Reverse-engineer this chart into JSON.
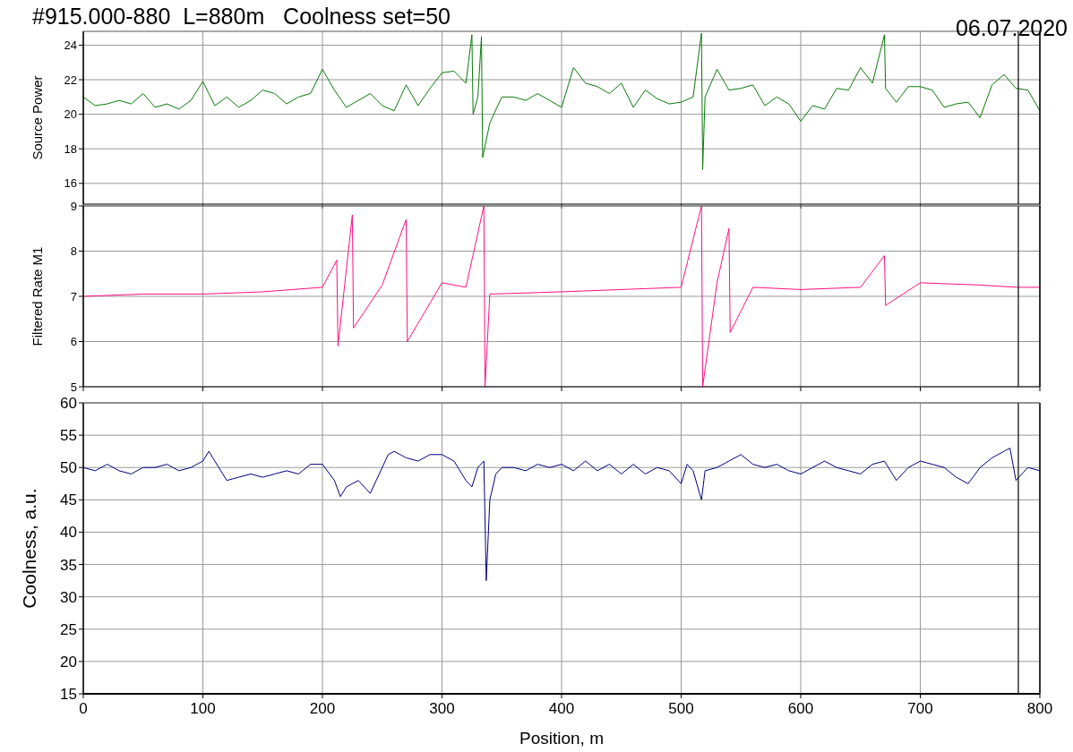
{
  "chart_data": [
    {
      "type": "line",
      "title": "#915.000-880  L=880m   Coolness set=50",
      "annotations": [
        "06.07.2020"
      ],
      "ylabel": "Source Power",
      "xlim": [
        0,
        800
      ],
      "xticks": [
        0,
        100,
        200,
        300,
        400,
        500,
        600,
        700,
        800
      ],
      "ylim": [
        14.8,
        24.8
      ],
      "yticks": [
        16,
        18,
        20,
        22,
        24
      ],
      "grid": true,
      "tick_labels": "y",
      "marker": "none",
      "line_style": "solid",
      "ref_lines": [
        {
          "axis": "x",
          "value": 782,
          "color": "#000000"
        }
      ],
      "series": [
        {
          "color": "#0a7a0a",
          "x": [
            0,
            10,
            20,
            30,
            40,
            50,
            60,
            70,
            80,
            90,
            100,
            110,
            120,
            130,
            140,
            150,
            160,
            170,
            180,
            190,
            200,
            210,
            220,
            230,
            240,
            250,
            260,
            270,
            280,
            290,
            300,
            310,
            320,
            325,
            326,
            330,
            333,
            334,
            340,
            350,
            360,
            370,
            380,
            390,
            400,
            410,
            420,
            430,
            440,
            450,
            460,
            470,
            480,
            490,
            500,
            510,
            517,
            518,
            520,
            530,
            540,
            550,
            560,
            570,
            580,
            590,
            600,
            610,
            620,
            630,
            640,
            650,
            660,
            670,
            671,
            680,
            690,
            700,
            710,
            720,
            730,
            740,
            750,
            760,
            770,
            780,
            790,
            800
          ],
          "values": [
            21,
            20.5,
            20.6,
            20.8,
            20.6,
            21.2,
            20.4,
            20.6,
            20.3,
            20.8,
            21.9,
            20.5,
            21,
            20.4,
            20.8,
            21.4,
            21.2,
            20.6,
            21,
            21.2,
            22.6,
            21.4,
            20.4,
            20.8,
            21.2,
            20.5,
            20.2,
            21.7,
            20.5,
            21.5,
            22.4,
            22.5,
            21.8,
            24.6,
            20,
            21,
            24.5,
            17.5,
            19.5,
            21,
            21,
            20.8,
            21.2,
            20.8,
            20.4,
            22.7,
            21.8,
            21.6,
            21.2,
            21.8,
            20.4,
            21.4,
            20.9,
            20.6,
            20.7,
            21,
            24.7,
            16.8,
            21,
            22.6,
            21.4,
            21.5,
            21.7,
            20.5,
            21,
            20.6,
            19.6,
            20.5,
            20.3,
            21.5,
            21.4,
            22.7,
            21.8,
            24.6,
            21.5,
            20.7,
            21.6,
            21.6,
            21.4,
            20.4,
            20.6,
            20.7,
            19.8,
            21.7,
            22.3,
            21.5,
            21.4,
            20.2
          ]
        }
      ]
    },
    {
      "type": "line",
      "ylabel": "Filtered Rate M1",
      "xlim": [
        0,
        800
      ],
      "xticks": [
        0,
        100,
        200,
        300,
        400,
        500,
        600,
        700,
        800
      ],
      "ylim": [
        5,
        9
      ],
      "yticks": [
        5,
        6,
        7,
        8,
        9
      ],
      "grid": true,
      "tick_labels": "y",
      "marker": "none",
      "line_style": "solid",
      "ref_lines": [
        {
          "axis": "x",
          "value": 782,
          "color": "#000000"
        }
      ],
      "series": [
        {
          "color": "#ff1080",
          "x": [
            0,
            50,
            100,
            150,
            200,
            212,
            213,
            225,
            226,
            250,
            270,
            271,
            300,
            320,
            335,
            336,
            340,
            400,
            450,
            500,
            517,
            518,
            530,
            540,
            541,
            560,
            600,
            650,
            670,
            671,
            700,
            750,
            780,
            800
          ],
          "values": [
            7.0,
            7.05,
            7.05,
            7.1,
            7.2,
            7.8,
            5.9,
            8.8,
            6.3,
            7.25,
            8.7,
            6.0,
            7.3,
            7.2,
            9.0,
            5.0,
            7.05,
            7.1,
            7.15,
            7.2,
            9.0,
            5.0,
            7.3,
            8.5,
            6.2,
            7.2,
            7.15,
            7.2,
            7.9,
            6.8,
            7.3,
            7.25,
            7.2,
            7.2
          ]
        }
      ]
    },
    {
      "type": "line",
      "xlabel": "Position, m",
      "ylabel": "Coolness, a.u.",
      "xlim": [
        0,
        800
      ],
      "xticks": [
        0,
        100,
        200,
        300,
        400,
        500,
        600,
        700,
        800
      ],
      "ylim": [
        15,
        60
      ],
      "yticks": [
        15,
        20,
        25,
        30,
        35,
        40,
        45,
        50,
        55,
        60
      ],
      "grid": true,
      "marker": "none",
      "line_style": "solid",
      "ref_lines": [
        {
          "axis": "x",
          "value": 782,
          "color": "#000000"
        }
      ],
      "series": [
        {
          "color": "#00007f",
          "x": [
            0,
            10,
            20,
            30,
            40,
            50,
            60,
            70,
            80,
            90,
            100,
            105,
            110,
            120,
            130,
            140,
            150,
            160,
            170,
            180,
            190,
            200,
            210,
            215,
            220,
            230,
            240,
            245,
            255,
            260,
            270,
            280,
            290,
            300,
            310,
            320,
            325,
            330,
            335,
            337,
            340,
            345,
            350,
            360,
            370,
            380,
            390,
            400,
            410,
            420,
            430,
            440,
            450,
            460,
            470,
            480,
            490,
            500,
            505,
            510,
            517,
            520,
            530,
            540,
            550,
            560,
            570,
            580,
            590,
            600,
            610,
            620,
            630,
            640,
            650,
            660,
            670,
            680,
            690,
            700,
            710,
            720,
            730,
            740,
            750,
            760,
            770,
            775,
            780,
            790,
            800
          ],
          "values": [
            50,
            49.5,
            50.5,
            49.5,
            49,
            50,
            50,
            50.5,
            49.5,
            50,
            51,
            52.5,
            51,
            48,
            48.5,
            49,
            48.5,
            49,
            49.5,
            49,
            50.5,
            50.5,
            48,
            45.5,
            47,
            48,
            46,
            48,
            52,
            52.5,
            51.5,
            51,
            52,
            52,
            51,
            48,
            47,
            50,
            51,
            32.5,
            45,
            49,
            50,
            50,
            49.5,
            50.5,
            50,
            50.5,
            49.5,
            51,
            49.5,
            50.5,
            49,
            50.5,
            49,
            50,
            49.5,
            47.5,
            50.5,
            49.5,
            45,
            49.5,
            50,
            51,
            52,
            50.5,
            50,
            50.5,
            49.5,
            49,
            50,
            51,
            50,
            49.5,
            49,
            50.5,
            51,
            48,
            50,
            51,
            50.5,
            50,
            48.5,
            47.5,
            50,
            51.5,
            52.5,
            53,
            48,
            50,
            49.5
          ]
        }
      ]
    }
  ]
}
